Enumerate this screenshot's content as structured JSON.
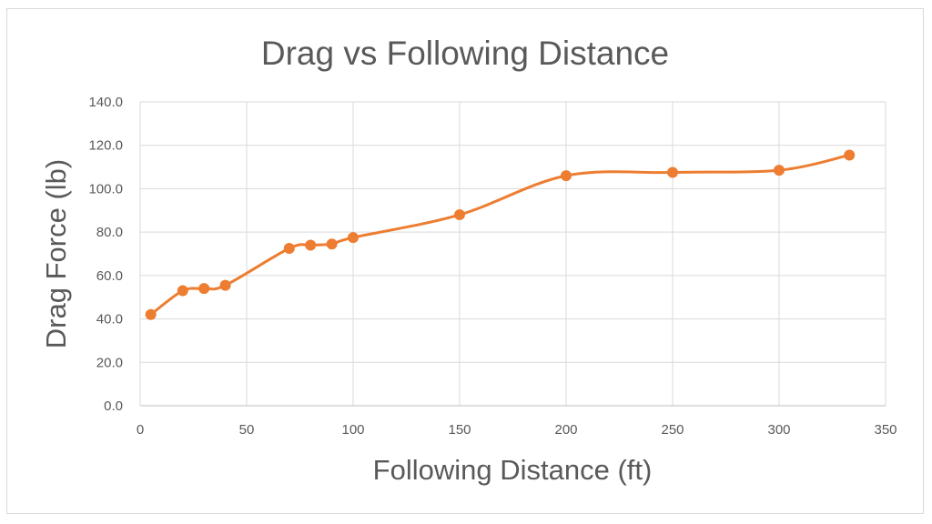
{
  "chart_data": {
    "type": "line",
    "title": "Drag vs Following Distance",
    "xlabel": "Following Distance (ft)",
    "ylabel": "Drag Force (lb)",
    "xlim": [
      0,
      350
    ],
    "ylim": [
      0,
      140
    ],
    "x_ticks": [
      0,
      50,
      100,
      150,
      200,
      250,
      300,
      350
    ],
    "y_ticks": [
      "0.0",
      "20.0",
      "40.0",
      "60.0",
      "80.0",
      "100.0",
      "120.0",
      "140.0"
    ],
    "grid": true,
    "smooth": true,
    "legend": "none",
    "series": [
      {
        "color": "#ED7D31",
        "marker": "circle",
        "points": [
          {
            "x": 5,
            "y": 42.0
          },
          {
            "x": 20,
            "y": 53.0
          },
          {
            "x": 30,
            "y": 54.0
          },
          {
            "x": 40,
            "y": 55.5
          },
          {
            "x": 70,
            "y": 72.5
          },
          {
            "x": 80,
            "y": 74.0
          },
          {
            "x": 90,
            "y": 74.5
          },
          {
            "x": 100,
            "y": 77.5
          },
          {
            "x": 150,
            "y": 88.0
          },
          {
            "x": 200,
            "y": 106.0
          },
          {
            "x": 250,
            "y": 107.5
          },
          {
            "x": 300,
            "y": 108.5
          },
          {
            "x": 333,
            "y": 115.5
          }
        ]
      }
    ]
  }
}
